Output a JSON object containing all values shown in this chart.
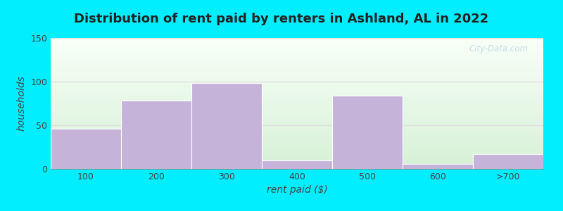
{
  "title": "Distribution of rent paid by renters in Ashland, AL in 2022",
  "categories": [
    "100",
    "200",
    "300",
    "400",
    "500",
    "600",
    ">700"
  ],
  "values": [
    46,
    78,
    98,
    10,
    84,
    6,
    17
  ],
  "bar_color": "#c5b3d9",
  "bar_edgecolor": "#c5b3d9",
  "xlabel": "rent paid ($)",
  "ylabel": "households",
  "ylim": [
    0,
    150
  ],
  "yticks": [
    0,
    50,
    100,
    150
  ],
  "bg_outer": "#00eeff",
  "title_fontsize": 13,
  "axis_label_fontsize": 10,
  "tick_fontsize": 9,
  "bar_width": 1.0,
  "watermark": "City-Data.com",
  "watermark_color": "#a8c4d8",
  "watermark_alpha": 0.6
}
